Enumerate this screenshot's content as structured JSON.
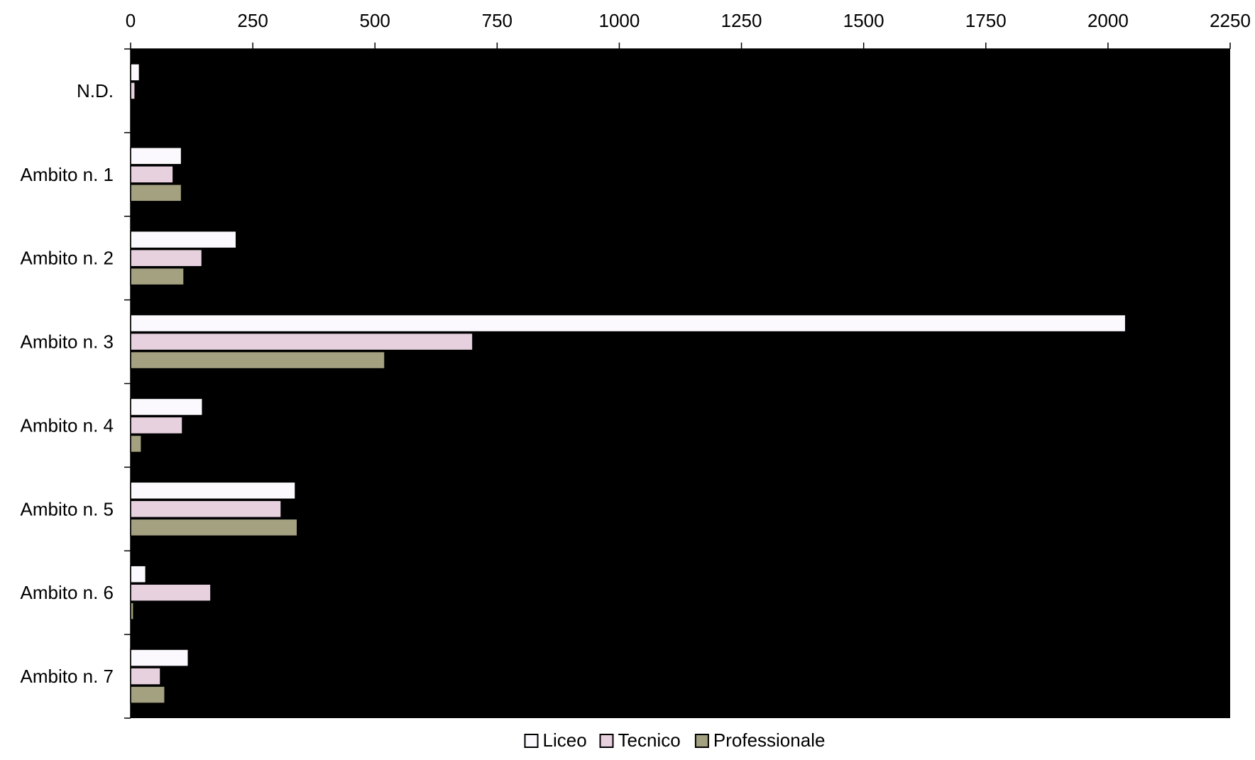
{
  "chart_data": {
    "type": "bar",
    "orientation": "horizontal",
    "title": "",
    "xlabel": "",
    "ylabel": "",
    "categories": [
      "N.D.",
      "Ambito n. 1",
      "Ambito n. 2",
      "Ambito n. 3",
      "Ambito n. 4",
      "Ambito n. 5",
      "Ambito n. 6",
      "Ambito n. 7"
    ],
    "series": [
      {
        "name": "Liceo",
        "color": "#fbf9fd",
        "values": [
          18,
          104,
          216,
          2036,
          147,
          337,
          31,
          118
        ]
      },
      {
        "name": "Tecnico",
        "color": "#e7d1df",
        "values": [
          9,
          87,
          146,
          700,
          106,
          308,
          164,
          61
        ]
      },
      {
        "name": "Professionale",
        "color": "#a3a180",
        "values": [
          0,
          104,
          109,
          520,
          22,
          341,
          6,
          70
        ]
      }
    ],
    "xlim": [
      0,
      2250
    ],
    "x_ticks": [
      "0",
      "250",
      "500",
      "750",
      "1000",
      "1250",
      "1500",
      "1750",
      "2000",
      "2250"
    ],
    "x_axis_position": "top",
    "plot_background": "#000000",
    "grid": false,
    "legend_position": "bottom-center"
  }
}
